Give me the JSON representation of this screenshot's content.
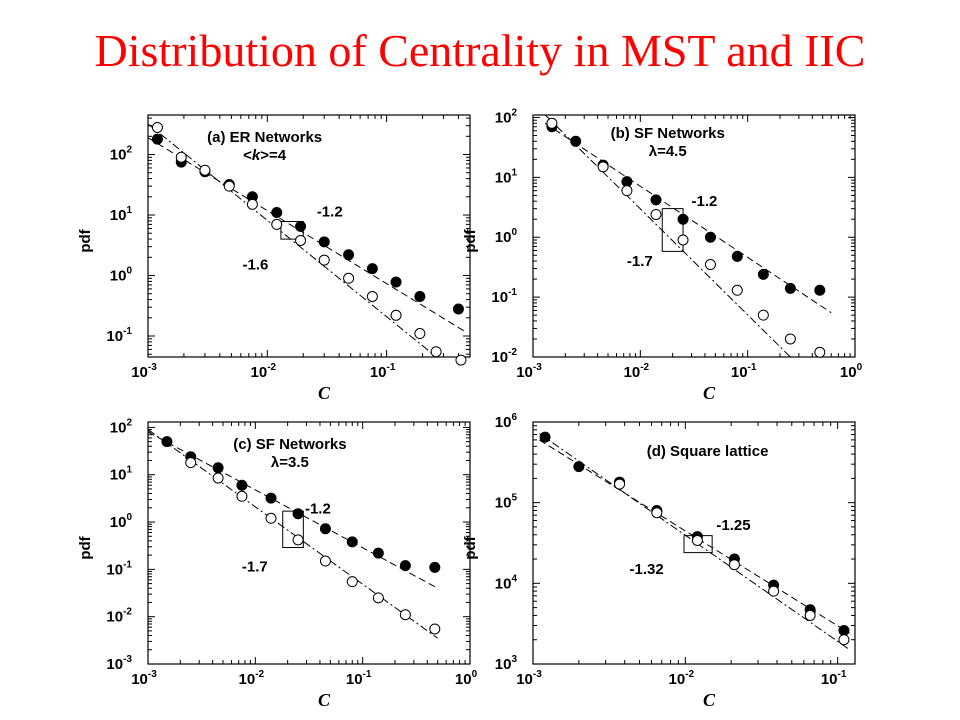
{
  "slide": {
    "title": "Distribution of Centrality in MST and IIC"
  },
  "colors": {
    "title": "#ff0000",
    "ink": "#000000"
  },
  "chart_data": [
    {
      "type": "scatter",
      "title": "(a) ER Networks",
      "subtitle_parts": [
        "<",
        "k",
        ">=4"
      ],
      "xlabel": "C",
      "ylabel": "pdf",
      "log_x": true,
      "log_y": true,
      "xlim": [
        0.001,
        0.5
      ],
      "ylim": [
        0.045,
        450
      ],
      "xticks": [
        {
          "v": 0.001,
          "base": "10",
          "exp": "-3"
        },
        {
          "v": 0.01,
          "base": "10",
          "exp": "-2"
        },
        {
          "v": 0.1,
          "base": "10",
          "exp": "-1"
        }
      ],
      "yticks": [
        {
          "v": 0.1,
          "base": "10",
          "exp": "-1"
        },
        {
          "v": 1,
          "base": "10",
          "exp": "0"
        },
        {
          "v": 10,
          "base": "10",
          "exp": "1"
        },
        {
          "v": 100,
          "base": "10",
          "exp": "2"
        }
      ],
      "series": [
        {
          "marker": "filled",
          "x": [
            0.0012,
            0.0019,
            0.003,
            0.0048,
            0.0075,
            0.012,
            0.019,
            0.03,
            0.048,
            0.076,
            0.12,
            0.19,
            0.4
          ],
          "y": [
            180,
            75,
            52,
            32,
            20,
            11,
            6.5,
            3.6,
            2.2,
            1.3,
            0.78,
            0.45,
            0.28
          ]
        },
        {
          "marker": "open",
          "x": [
            0.0012,
            0.0019,
            0.003,
            0.0048,
            0.0075,
            0.012,
            0.019,
            0.03,
            0.048,
            0.076,
            0.12,
            0.19,
            0.26,
            0.42
          ],
          "y": [
            280,
            90,
            55,
            30,
            15,
            7,
            3.8,
            1.8,
            0.9,
            0.45,
            0.22,
            0.11,
            0.055,
            0.04
          ]
        }
      ],
      "fits": [
        {
          "style": "dash",
          "x0": 0.001,
          "y0": 190,
          "x1": 0.45,
          "y1": 0.12
        },
        {
          "style": "dashdot",
          "x0": 0.001,
          "y0": 320,
          "x1": 0.45,
          "y1": 0.019
        }
      ],
      "slope_box": {
        "x0": 0.013,
        "x1": 0.02,
        "y_top": 7.8,
        "y_bot": 4.0
      },
      "annotations": [
        {
          "text": "-1.2",
          "x": 0.026,
          "y": 9.5
        },
        {
          "text": "-1.6",
          "x": 0.0062,
          "y": 1.25
        }
      ],
      "label_pos": {
        "x": 0.0095,
        "y": 160
      }
    },
    {
      "type": "scatter",
      "title": "(b) SF Networks",
      "subtitle_parts": [
        "λ",
        "=4.5"
      ],
      "xlabel": "C",
      "ylabel": "pdf",
      "log_x": true,
      "log_y": true,
      "xlim": [
        0.001,
        1
      ],
      "ylim": [
        0.01,
        110
      ],
      "xticks": [
        {
          "v": 0.001,
          "base": "10",
          "exp": "-3"
        },
        {
          "v": 0.01,
          "base": "10",
          "exp": "-2"
        },
        {
          "v": 0.1,
          "base": "10",
          "exp": "-1"
        },
        {
          "v": 1,
          "base": "10",
          "exp": "0"
        }
      ],
      "yticks": [
        {
          "v": 0.01,
          "base": "10",
          "exp": "-2"
        },
        {
          "v": 0.1,
          "base": "10",
          "exp": "-1"
        },
        {
          "v": 1,
          "base": "10",
          "exp": "0"
        },
        {
          "v": 10,
          "base": "10",
          "exp": "1"
        },
        {
          "v": 100,
          "base": "10",
          "exp": "2"
        }
      ],
      "series": [
        {
          "marker": "filled",
          "x": [
            0.0015,
            0.0025,
            0.0045,
            0.0075,
            0.014,
            0.025,
            0.045,
            0.08,
            0.14,
            0.25,
            0.47
          ],
          "y": [
            70,
            40,
            16,
            8.5,
            4.2,
            2.0,
            1.0,
            0.48,
            0.24,
            0.14,
            0.13
          ]
        },
        {
          "marker": "open",
          "x": [
            0.0015,
            0.0045,
            0.0075,
            0.014,
            0.025,
            0.045,
            0.08,
            0.14,
            0.25,
            0.47
          ],
          "y": [
            80,
            15,
            6.0,
            2.4,
            0.9,
            0.35,
            0.13,
            0.05,
            0.02,
            0.012
          ]
        }
      ],
      "fits": [
        {
          "style": "dash",
          "x0": 0.0013,
          "y0": 80,
          "x1": 0.6,
          "y1": 0.055
        },
        {
          "style": "dashdot",
          "x0": 0.0013,
          "y0": 110,
          "x1": 0.25,
          "y1": 0.01
        }
      ],
      "slope_box": {
        "x0": 0.016,
        "x1": 0.025,
        "y_top": 3.0,
        "y_bot": 0.58
      },
      "annotations": [
        {
          "text": "-1.2",
          "x": 0.03,
          "y": 3.3
        },
        {
          "text": "-1.7",
          "x": 0.0075,
          "y": 0.33
        }
      ],
      "label_pos": {
        "x": 0.018,
        "y": 45
      }
    },
    {
      "type": "scatter",
      "title": "(c) SF Networks",
      "subtitle_parts": [
        "λ",
        "=3.5"
      ],
      "xlabel": "C",
      "ylabel": "pdf",
      "log_x": true,
      "log_y": true,
      "xlim": [
        0.001,
        1
      ],
      "ylim": [
        0.001,
        130
      ],
      "xticks": [
        {
          "v": 0.001,
          "base": "10",
          "exp": "-3"
        },
        {
          "v": 0.01,
          "base": "10",
          "exp": "-2"
        },
        {
          "v": 0.1,
          "base": "10",
          "exp": "-1"
        },
        {
          "v": 1,
          "base": "10",
          "exp": "0"
        }
      ],
      "yticks": [
        {
          "v": 0.001,
          "base": "10",
          "exp": "-3"
        },
        {
          "v": 0.01,
          "base": "10",
          "exp": "-2"
        },
        {
          "v": 0.1,
          "base": "10",
          "exp": "-1"
        },
        {
          "v": 1,
          "base": "10",
          "exp": "0"
        },
        {
          "v": 10,
          "base": "10",
          "exp": "1"
        },
        {
          "v": 100,
          "base": "10",
          "exp": "2"
        }
      ],
      "series": [
        {
          "marker": "filled",
          "x": [
            0.0015,
            0.0025,
            0.0045,
            0.0075,
            0.014,
            0.025,
            0.045,
            0.08,
            0.14,
            0.25,
            0.47
          ],
          "y": [
            50,
            24,
            14,
            6,
            3.2,
            1.5,
            0.72,
            0.38,
            0.22,
            0.12,
            0.11
          ]
        },
        {
          "marker": "open",
          "x": [
            0.0025,
            0.0045,
            0.0075,
            0.014,
            0.025,
            0.045,
            0.08,
            0.14,
            0.25,
            0.47
          ],
          "y": [
            18,
            8.5,
            3.5,
            1.2,
            0.42,
            0.15,
            0.055,
            0.025,
            0.011,
            0.0055
          ]
        }
      ],
      "fits": [
        {
          "style": "dash",
          "x0": 0.001,
          "y0": 80,
          "x1": 0.5,
          "y1": 0.04
        },
        {
          "style": "dashdot",
          "x0": 0.001,
          "y0": 90,
          "x1": 0.5,
          "y1": 0.0035
        }
      ],
      "slope_box": {
        "x0": 0.018,
        "x1": 0.028,
        "y_top": 1.7,
        "y_bot": 0.29
      },
      "annotations": [
        {
          "text": "-1.2",
          "x": 0.029,
          "y": 1.5
        },
        {
          "text": "-1.7",
          "x": 0.0075,
          "y": 0.09
        }
      ],
      "label_pos": {
        "x": 0.021,
        "y": 35
      }
    },
    {
      "type": "scatter",
      "title": "(d) Square lattice",
      "subtitle_parts": [],
      "xlabel": "C",
      "ylabel": "pdf",
      "log_x": true,
      "log_y": true,
      "xlim": [
        0.001,
        0.13
      ],
      "ylim": [
        1000,
        1000000
      ],
      "xticks": [
        {
          "v": 0.001,
          "base": "10",
          "exp": "-3"
        },
        {
          "v": 0.01,
          "base": "10",
          "exp": "-2"
        },
        {
          "v": 0.1,
          "base": "10",
          "exp": "-1"
        }
      ],
      "yticks": [
        {
          "v": 1000,
          "base": "10",
          "exp": "3"
        },
        {
          "v": 10000,
          "base": "10",
          "exp": "4"
        },
        {
          "v": 100000,
          "base": "10",
          "exp": "5"
        },
        {
          "v": 1000000,
          "base": "10",
          "exp": "6"
        }
      ],
      "series": [
        {
          "marker": "filled",
          "x": [
            0.0012,
            0.002,
            0.0037,
            0.0065,
            0.012,
            0.021,
            0.038,
            0.066,
            0.11
          ],
          "y": [
            650000,
            280000,
            180000,
            80000,
            38000,
            20000,
            9500,
            4700,
            2600
          ]
        },
        {
          "marker": "open",
          "x": [
            0.0037,
            0.0065,
            0.012,
            0.021,
            0.038,
            0.066,
            0.11
          ],
          "y": [
            170000,
            75000,
            34000,
            17000,
            8000,
            4000,
            2000
          ]
        }
      ],
      "fits": [
        {
          "style": "dash",
          "x0": 0.0011,
          "y0": 600000,
          "x1": 0.12,
          "y1": 2400
        },
        {
          "style": "dashdot",
          "x0": 0.0011,
          "y0": 720000,
          "x1": 0.12,
          "y1": 1500
        }
      ],
      "slope_box": {
        "x0": 0.0098,
        "x1": 0.015,
        "y_top": 39000,
        "y_bot": 24000
      },
      "annotations": [
        {
          "text": "-1.25",
          "x": 0.016,
          "y": 46000
        },
        {
          "text": "-1.32",
          "x": 0.0043,
          "y": 13000
        }
      ],
      "label_pos": {
        "x": 0.014,
        "y": 380000
      }
    }
  ]
}
